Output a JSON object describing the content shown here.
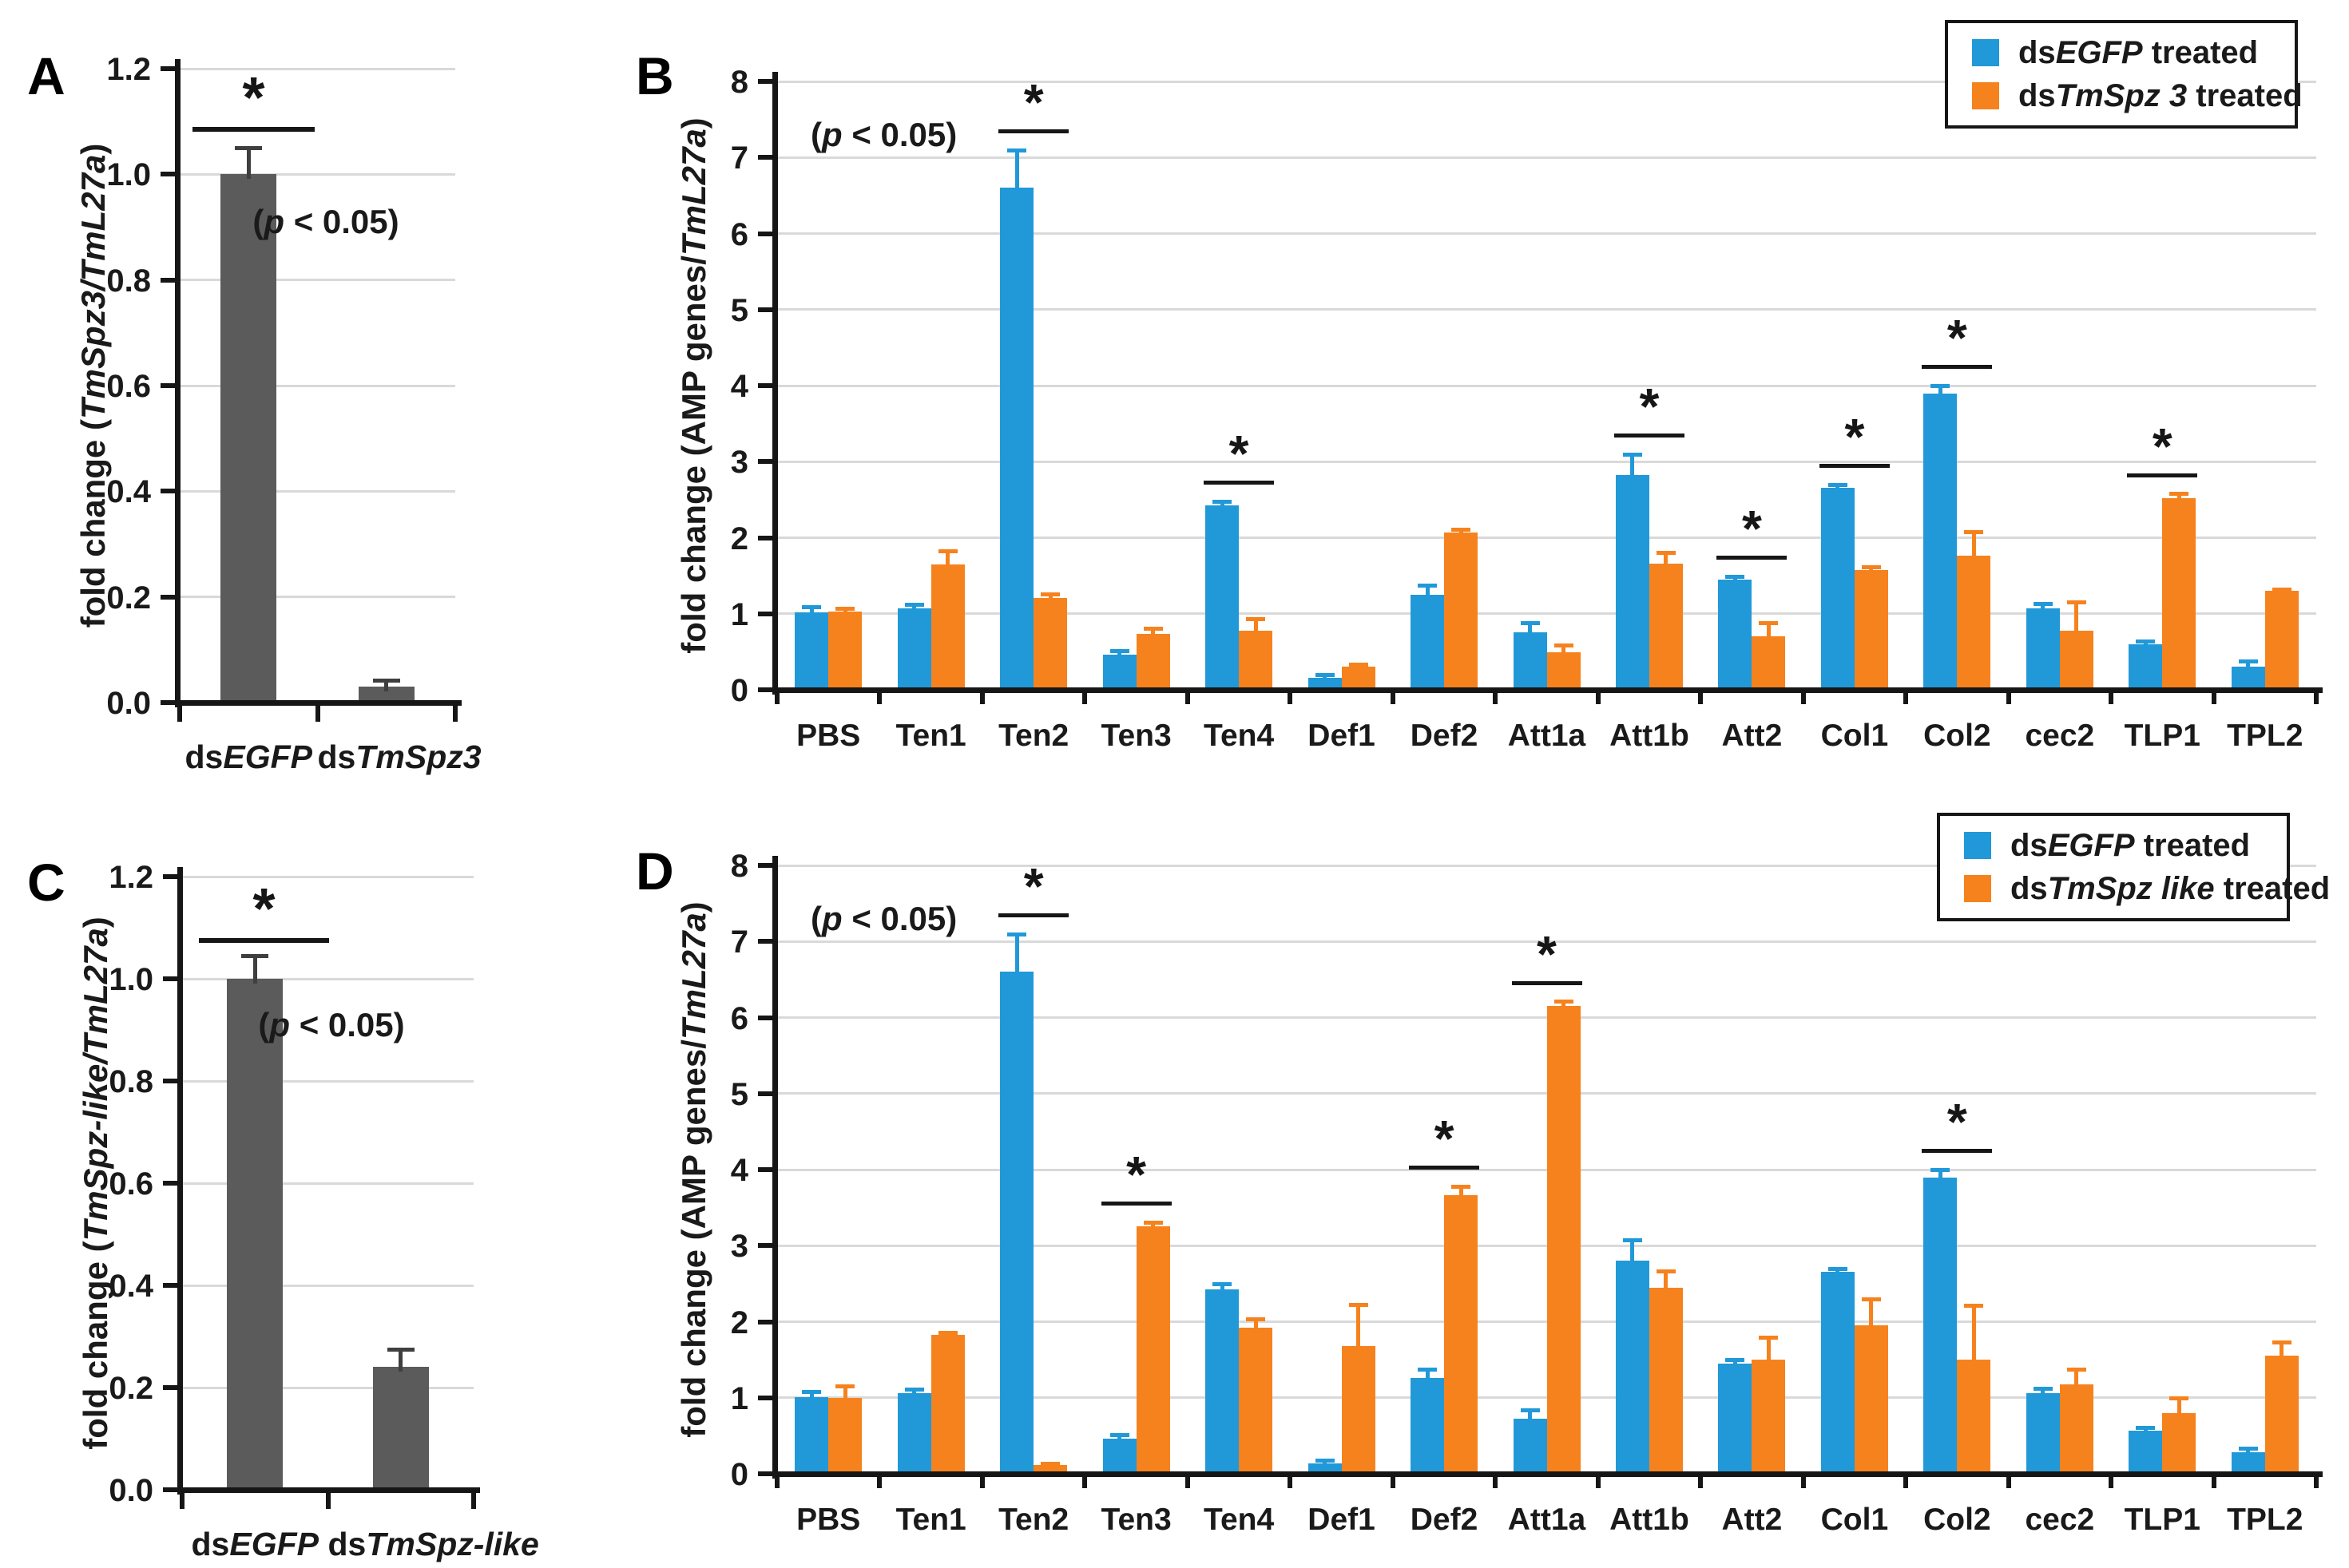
{
  "figure": {
    "background": "#ffffff"
  },
  "colors": {
    "control_blue": "#2199D8",
    "treatment_orange": "#F6821E",
    "gray_bar": "#5B5B5B",
    "gray_whisker": "#3F3F3F",
    "grid": "#D9D9D9",
    "axis": "#161616"
  },
  "chart_data": [
    {
      "id": "A",
      "panel_label": "A",
      "type": "bar",
      "ylim": [
        0,
        1.2
      ],
      "ytick_step": 0.2,
      "ytick_decimals": 1,
      "grid": true,
      "ylabel_segments": [
        {
          "t": "fold change (",
          "i": false
        },
        {
          "t": "TmSpz3/TmL27a",
          "i": true
        },
        {
          "t": ")",
          "i": false
        }
      ],
      "annotation_segments": [
        {
          "t": "(",
          "i": false
        },
        {
          "t": "p",
          "i": true
        },
        {
          "t": " < 0.05)",
          "i": false
        }
      ],
      "series": [
        {
          "name": "fold change",
          "color": "gray_bar",
          "whisker": "gray_whisker"
        }
      ],
      "categories": [
        {
          "label_segments": [
            {
              "t": "ds",
              "i": false
            },
            {
              "t": "EGFP",
              "i": true
            }
          ],
          "bars": [
            {
              "v": 1.0,
              "e": 0.05
            }
          ]
        },
        {
          "label_segments": [
            {
              "t": "ds",
              "i": false
            },
            {
              "t": "TmSpz3",
              "i": true
            }
          ],
          "bars": [
            {
              "v": 0.03,
              "e": 0.012
            }
          ]
        }
      ],
      "pair_sig": {
        "line_y": 1.09,
        "star": "*"
      }
    },
    {
      "id": "B",
      "panel_label": "B",
      "type": "bar",
      "ylim": [
        0,
        8
      ],
      "ytick_step": 1,
      "ytick_decimals": 0,
      "grid": true,
      "ylabel_segments": [
        {
          "t": "fold change (AMP genes/",
          "i": false
        },
        {
          "t": "TmL27a",
          "i": true
        },
        {
          "t": ")",
          "i": false
        }
      ],
      "annotation_segments": [
        {
          "t": "(",
          "i": false
        },
        {
          "t": "p",
          "i": true
        },
        {
          "t": " < 0.05)",
          "i": false
        }
      ],
      "legend": true,
      "sig_star": "*",
      "series": [
        {
          "name_segments": [
            {
              "t": "ds",
              "i": false
            },
            {
              "t": "EGFP",
              "i": true
            },
            {
              "t": " treated",
              "i": false
            }
          ],
          "color": "control_blue"
        },
        {
          "name_segments": [
            {
              "t": "ds",
              "i": false
            },
            {
              "t": "TmSpz 3",
              "i": true
            },
            {
              "t": " treated",
              "i": false
            }
          ],
          "color": "treatment_orange"
        }
      ],
      "categories": [
        {
          "label": "PBS",
          "bars": [
            {
              "v": 1.02,
              "e": 0.07
            },
            {
              "v": 1.03,
              "e": 0.04
            }
          ],
          "sig": false
        },
        {
          "label": "Ten1",
          "bars": [
            {
              "v": 1.07,
              "e": 0.05
            },
            {
              "v": 1.65,
              "e": 0.18
            }
          ],
          "sig": false
        },
        {
          "label": "Ten2",
          "bars": [
            {
              "v": 6.6,
              "e": 0.5
            },
            {
              "v": 1.21,
              "e": 0.05
            }
          ],
          "sig": true
        },
        {
          "label": "Ten3",
          "bars": [
            {
              "v": 0.46,
              "e": 0.05
            },
            {
              "v": 0.73,
              "e": 0.08
            }
          ],
          "sig": false
        },
        {
          "label": "Ten4",
          "bars": [
            {
              "v": 2.42,
              "e": 0.06
            },
            {
              "v": 0.78,
              "e": 0.15
            }
          ],
          "sig": true
        },
        {
          "label": "Def1",
          "bars": [
            {
              "v": 0.16,
              "e": 0.04
            },
            {
              "v": 0.3,
              "e": 0.04
            }
          ],
          "sig": false
        },
        {
          "label": "Def2",
          "bars": [
            {
              "v": 1.25,
              "e": 0.13
            },
            {
              "v": 2.07,
              "e": 0.04
            }
          ],
          "sig": false
        },
        {
          "label": "Att1a",
          "bars": [
            {
              "v": 0.76,
              "e": 0.12
            },
            {
              "v": 0.49,
              "e": 0.1
            }
          ],
          "sig": false
        },
        {
          "label": "Att1b",
          "bars": [
            {
              "v": 2.82,
              "e": 0.28
            },
            {
              "v": 1.66,
              "e": 0.15
            }
          ],
          "sig": true
        },
        {
          "label": "Att2",
          "bars": [
            {
              "v": 1.45,
              "e": 0.04
            },
            {
              "v": 0.7,
              "e": 0.18
            }
          ],
          "sig": true
        },
        {
          "label": "Col1",
          "bars": [
            {
              "v": 2.66,
              "e": 0.04
            },
            {
              "v": 1.58,
              "e": 0.04
            }
          ],
          "sig": true
        },
        {
          "label": "Col2",
          "bars": [
            {
              "v": 3.9,
              "e": 0.1
            },
            {
              "v": 1.76,
              "e": 0.32
            }
          ],
          "sig": true
        },
        {
          "label": "cec2",
          "bars": [
            {
              "v": 1.07,
              "e": 0.06
            },
            {
              "v": 0.78,
              "e": 0.38
            }
          ],
          "sig": false
        },
        {
          "label": "TLP1",
          "bars": [
            {
              "v": 0.6,
              "e": 0.04
            },
            {
              "v": 2.52,
              "e": 0.06
            }
          ],
          "sig": true
        },
        {
          "label": "TPL2",
          "bars": [
            {
              "v": 0.3,
              "e": 0.08
            },
            {
              "v": 1.3,
              "e": 0.02
            }
          ],
          "sig": false
        }
      ]
    },
    {
      "id": "C",
      "panel_label": "C",
      "type": "bar",
      "ylim": [
        0,
        1.2
      ],
      "ytick_step": 0.2,
      "ytick_decimals": 1,
      "grid": true,
      "ylabel_segments": [
        {
          "t": "fold change (",
          "i": false
        },
        {
          "t": "TmSpz-like/TmL27a",
          "i": true
        },
        {
          "t": ")",
          "i": false
        }
      ],
      "annotation_segments": [
        {
          "t": "(",
          "i": false
        },
        {
          "t": "p",
          "i": true
        },
        {
          "t": " < 0.05)",
          "i": false
        }
      ],
      "series": [
        {
          "name": "fold change",
          "color": "gray_bar",
          "whisker": "gray_whisker"
        }
      ],
      "categories": [
        {
          "label_segments": [
            {
              "t": "ds",
              "i": false
            },
            {
              "t": "EGFP",
              "i": true
            }
          ],
          "bars": [
            {
              "v": 1.0,
              "e": 0.045
            }
          ]
        },
        {
          "label_segments": [
            {
              "t": "ds",
              "i": false
            },
            {
              "t": "TmSpz-like",
              "i": true
            }
          ],
          "bars": [
            {
              "v": 0.24,
              "e": 0.035
            }
          ]
        }
      ],
      "pair_sig": {
        "line_y": 1.08,
        "star": "*"
      }
    },
    {
      "id": "D",
      "panel_label": "D",
      "type": "bar",
      "ylim": [
        0,
        8
      ],
      "ytick_step": 1,
      "ytick_decimals": 0,
      "grid": true,
      "ylabel_segments": [
        {
          "t": "fold change (AMP genes/",
          "i": false
        },
        {
          "t": "TmL27a",
          "i": true
        },
        {
          "t": ")",
          "i": false
        }
      ],
      "annotation_segments": [
        {
          "t": "(",
          "i": false
        },
        {
          "t": "p",
          "i": true
        },
        {
          "t": " < 0.05)",
          "i": false
        }
      ],
      "legend": true,
      "sig_star": "*",
      "series": [
        {
          "name_segments": [
            {
              "t": "ds",
              "i": false
            },
            {
              "t": "EGFP",
              "i": true
            },
            {
              "t": " treated",
              "i": false
            }
          ],
          "color": "control_blue"
        },
        {
          "name_segments": [
            {
              "t": "ds",
              "i": false
            },
            {
              "t": "TmSpz like",
              "i": true
            },
            {
              "t": " treated",
              "i": false
            }
          ],
          "color": "treatment_orange"
        }
      ],
      "categories": [
        {
          "label": "PBS",
          "bars": [
            {
              "v": 1.01,
              "e": 0.07
            },
            {
              "v": 1.0,
              "e": 0.15
            }
          ],
          "sig": false
        },
        {
          "label": "Ten1",
          "bars": [
            {
              "v": 1.06,
              "e": 0.05
            },
            {
              "v": 1.83,
              "e": 0.03
            }
          ],
          "sig": false
        },
        {
          "label": "Ten2",
          "bars": [
            {
              "v": 6.6,
              "e": 0.5
            },
            {
              "v": 0.12,
              "e": 0.02
            }
          ],
          "sig": true
        },
        {
          "label": "Ten3",
          "bars": [
            {
              "v": 0.46,
              "e": 0.05
            },
            {
              "v": 3.25,
              "e": 0.06
            }
          ],
          "sig": true
        },
        {
          "label": "Ten4",
          "bars": [
            {
              "v": 2.42,
              "e": 0.08
            },
            {
              "v": 1.92,
              "e": 0.12
            }
          ],
          "sig": false
        },
        {
          "label": "Def1",
          "bars": [
            {
              "v": 0.14,
              "e": 0.04
            },
            {
              "v": 1.68,
              "e": 0.55
            }
          ],
          "sig": false
        },
        {
          "label": "Def2",
          "bars": [
            {
              "v": 1.26,
              "e": 0.12
            },
            {
              "v": 3.66,
              "e": 0.12
            }
          ],
          "sig": true
        },
        {
          "label": "Att1a",
          "bars": [
            {
              "v": 0.72,
              "e": 0.12
            },
            {
              "v": 6.15,
              "e": 0.06
            }
          ],
          "sig": true
        },
        {
          "label": "Att1b",
          "bars": [
            {
              "v": 2.8,
              "e": 0.28
            },
            {
              "v": 2.45,
              "e": 0.22
            }
          ],
          "sig": false
        },
        {
          "label": "Att2",
          "bars": [
            {
              "v": 1.45,
              "e": 0.05
            },
            {
              "v": 1.5,
              "e": 0.3
            }
          ],
          "sig": false
        },
        {
          "label": "Col1",
          "bars": [
            {
              "v": 2.66,
              "e": 0.04
            },
            {
              "v": 1.95,
              "e": 0.35
            }
          ],
          "sig": false
        },
        {
          "label": "Col2",
          "bars": [
            {
              "v": 3.9,
              "e": 0.1
            },
            {
              "v": 1.5,
              "e": 0.72
            }
          ],
          "sig": true
        },
        {
          "label": "cec2",
          "bars": [
            {
              "v": 1.06,
              "e": 0.06
            },
            {
              "v": 1.18,
              "e": 0.2
            }
          ],
          "sig": false
        },
        {
          "label": "TLP1",
          "bars": [
            {
              "v": 0.57,
              "e": 0.04
            },
            {
              "v": 0.8,
              "e": 0.2
            }
          ],
          "sig": false
        },
        {
          "label": "TPL2",
          "bars": [
            {
              "v": 0.28,
              "e": 0.06
            },
            {
              "v": 1.55,
              "e": 0.18
            }
          ],
          "sig": false
        }
      ]
    }
  ]
}
